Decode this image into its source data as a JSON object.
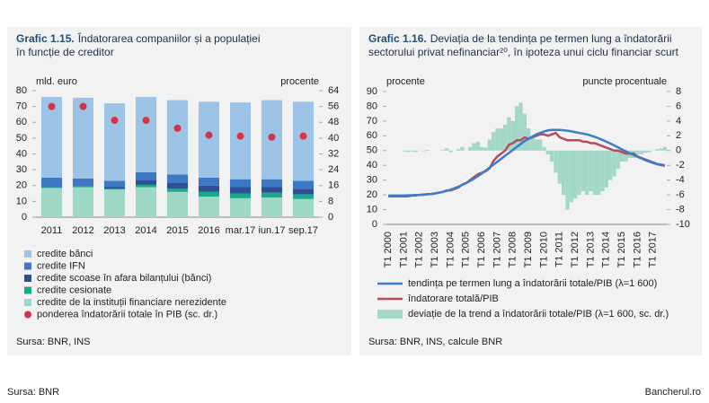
{
  "chart_data": [
    {
      "type": "bar",
      "stacked": true,
      "title_number": "Grafic 1.15.",
      "title": [
        "Îndatorarea companiilor și a populației",
        "în funcție de creditor"
      ],
      "ylabel": "mld. euro",
      "y2label": "procente",
      "categories": [
        "2011",
        "2012",
        "2013",
        "2014",
        "2015",
        "2016",
        "mar.17",
        "iun.17",
        "sep.17"
      ],
      "ylim": [
        0,
        80
      ],
      "yticks": [
        0,
        10,
        20,
        30,
        40,
        50,
        60,
        70,
        80
      ],
      "y2lim": [
        0,
        64
      ],
      "y2ticks": [
        0,
        8,
        16,
        24,
        32,
        40,
        48,
        56,
        64
      ],
      "grid": false,
      "series": [
        {
          "name": "credite de la instituții financiare nerezidente",
          "kind": "bar",
          "color": "#9fd7c6",
          "values": [
            18.5,
            19,
            17.5,
            19,
            16,
            13,
            12,
            12.5,
            11.5
          ]
        },
        {
          "name": "credite cesionate",
          "kind": "bar",
          "color": "#19a98b",
          "values": [
            0.5,
            0.5,
            0.5,
            1.5,
            2,
            3,
            3,
            3,
            3
          ]
        },
        {
          "name": "credite scoase în afara bilanțului (bănci)",
          "kind": "bar",
          "color": "#2e4f94",
          "values": [
            0,
            0,
            1,
            3,
            4,
            4,
            4,
            3.5,
            3.5
          ]
        },
        {
          "name": "credite IFN",
          "kind": "bar",
          "color": "#3c78c3",
          "values": [
            6,
            5,
            4,
            5,
            5,
            5,
            5,
            5,
            5
          ]
        },
        {
          "name": "credite bănci",
          "kind": "bar",
          "color": "#9dc3e6",
          "values": [
            51,
            51,
            49,
            47.5,
            47,
            48,
            48.5,
            50,
            50
          ]
        },
        {
          "name": "ponderea îndatorării totale în PIB (sc. dr.)",
          "kind": "scatter",
          "axis": "y2",
          "color": "#d6334a",
          "values": [
            56,
            56,
            49,
            49,
            45,
            41.5,
            41,
            40.5,
            41
          ]
        }
      ],
      "legend_order": [
        4,
        3,
        2,
        1,
        0,
        5
      ],
      "source": "Sursa: BNR, INS"
    },
    {
      "type": "line",
      "title_number": "Grafic 1.16.",
      "title": [
        "Deviația de la tendința pe termen lung a îndatorării",
        "sectorului privat nefinanciar²⁰, în ipoteza unui ciclu financiar scurt"
      ],
      "ylabel": "procente",
      "y2label": "puncte procentuale",
      "categories": [
        "T1 2000",
        null,
        null,
        null,
        "T1 2001",
        null,
        null,
        null,
        "T1 2002",
        null,
        null,
        null,
        "T1 2003",
        null,
        null,
        null,
        "T1 2004",
        null,
        null,
        null,
        "T1 2005",
        null,
        null,
        null,
        "T1 2006",
        null,
        null,
        null,
        "T1 2007",
        null,
        null,
        null,
        "T1 2008",
        null,
        null,
        null,
        "T1 2009",
        null,
        null,
        null,
        "T1 2010",
        null,
        null,
        null,
        "T1 2011",
        null,
        null,
        null,
        "T1 2012",
        null,
        null,
        null,
        "T1 2013",
        null,
        null,
        null,
        "T1 2014",
        null,
        null,
        null,
        "T1 2015",
        null,
        null,
        null,
        "T1 2016",
        null,
        null,
        null,
        "T1 2017",
        null,
        null,
        null
      ],
      "ylim": [
        0,
        90
      ],
      "yticks": [
        0,
        10,
        20,
        30,
        40,
        50,
        60,
        70,
        80,
        90
      ],
      "y2lim": [
        -10,
        8
      ],
      "y2ticks": [
        -10,
        -8,
        -6,
        -4,
        -2,
        0,
        2,
        4,
        6,
        8
      ],
      "grid": false,
      "series": [
        {
          "name": "deviație de la trend a îndatorării totale/PIB (λ=1 600, sc. dr.)",
          "kind": "bar",
          "axis": "y2",
          "color": "#a3d8c8",
          "values": [
            0,
            0,
            0,
            0,
            -0.1,
            -0.2,
            -0.1,
            -0.2,
            0,
            -0.1,
            0.1,
            0,
            0,
            0,
            0.1,
            0.3,
            -0.2,
            0,
            0.2,
            0.5,
            0,
            0.5,
            1,
            1.2,
            0.5,
            0.4,
            1.5,
            2.5,
            3,
            3,
            3.5,
            4.5,
            4,
            6,
            6.5,
            5,
            3,
            2,
            1.5,
            1.5,
            0.5,
            -0.5,
            -1.5,
            -3,
            -4.5,
            -6,
            -8,
            -7,
            -6.5,
            -6,
            -5.5,
            -6,
            -5.5,
            -6,
            -6,
            -5.5,
            -5,
            -4,
            -3.5,
            -2.5,
            -1.5,
            -1.5,
            -1,
            -1,
            -0.5,
            -0.5,
            -0.3,
            -0.2,
            0,
            0.2,
            0.3,
            0.5
          ]
        },
        {
          "name": "îndatorare totală/PIB",
          "kind": "line",
          "color": "#b84a5e",
          "values": [
            19,
            19,
            19,
            19,
            19,
            19,
            19.5,
            19.5,
            20,
            20,
            20.5,
            20.5,
            21,
            21.5,
            22,
            23,
            23,
            24,
            25,
            27,
            28,
            30,
            32,
            34,
            35,
            36,
            38,
            43,
            46,
            48,
            50,
            54,
            55,
            57,
            57,
            59,
            58,
            59,
            60,
            61,
            61,
            60,
            61,
            62,
            59,
            58,
            57,
            57,
            57,
            57,
            56,
            56,
            55,
            55,
            54,
            53,
            52,
            51,
            50,
            50,
            49,
            48,
            48,
            48,
            46,
            45,
            44,
            43,
            42,
            41,
            40.5,
            40
          ]
        },
        {
          "name": "tendința pe termen lung a îndatorării totale/PIB (λ=1 600)",
          "kind": "line",
          "color": "#3a7dc9",
          "values": [
            19.5,
            19.5,
            19.5,
            19.5,
            19.6,
            19.7,
            19.8,
            19.9,
            20,
            20.2,
            20.4,
            20.6,
            21,
            21.5,
            22,
            22.7,
            23.5,
            24.5,
            25.5,
            26.8,
            28,
            29.5,
            31,
            32.7,
            34.5,
            36.5,
            38.5,
            40.5,
            42.5,
            44.5,
            46.5,
            48.5,
            50.5,
            52.5,
            54.5,
            56.5,
            58,
            59.5,
            61,
            62,
            63,
            63.7,
            64,
            64,
            64,
            63.8,
            63.5,
            63,
            62.5,
            62,
            61.5,
            61,
            60.2,
            59.3,
            58.3,
            57.2,
            56,
            54.8,
            53.5,
            52.2,
            50.8,
            49.5,
            48.2,
            47,
            45.8,
            44.6,
            43.5,
            42.5,
            41.6,
            40.8,
            40.2,
            39.7
          ]
        }
      ],
      "legend_order": [
        2,
        1,
        0
      ],
      "source": "Sursa: BNR, INS, calcule BNR"
    }
  ],
  "footer": {
    "source": "Sursa: BNR",
    "site": "Bancherul.ro"
  }
}
